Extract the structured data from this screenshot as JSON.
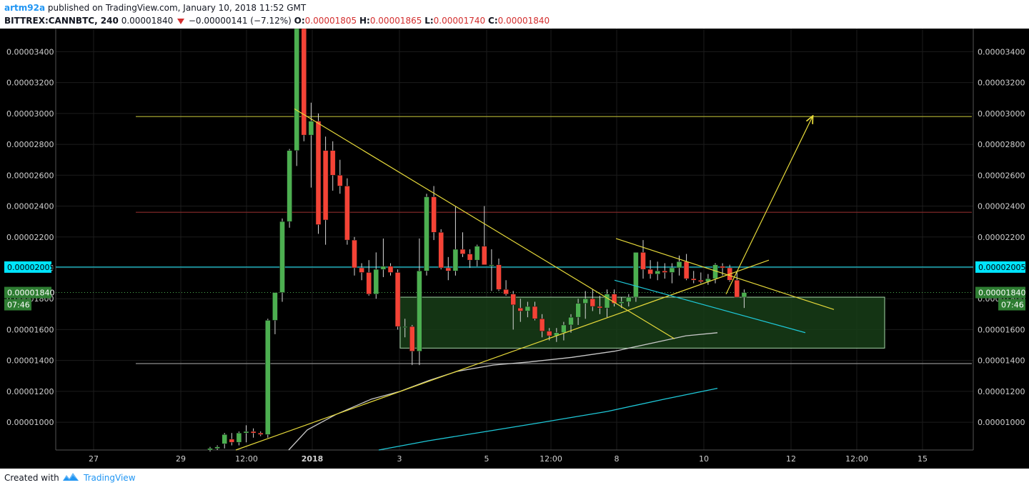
{
  "header": {
    "author": "artm92a",
    "published_text": "published on TradingView.com, January 10, 2018 11:52 GMT",
    "symbol": "BITTREX:CANNBTC, 240",
    "last": "0.00001840",
    "change": "−0.00000141 (−7.12%)",
    "o_label": "O:",
    "o_value": "0.00001805",
    "h_label": "H:",
    "h_value": "0.00001865",
    "l_label": "L:",
    "l_value": "0.00001740",
    "c_label": "C:",
    "c_value": "0.00001840"
  },
  "footer": {
    "created_with": "Created with",
    "brand": "TradingView"
  },
  "colors": {
    "background": "#000000",
    "grid": "#1c1c1c",
    "up": "#4caf50",
    "down": "#f44336",
    "trend": "#e6d93a",
    "cyan": "#1ec8d8",
    "ma_light": "#c8c8c8",
    "hline_yellow": "#b4b436",
    "hline_red": "#8a2a2a",
    "hline_gray": "#8c8c8c",
    "box_fill": "#173d17",
    "box_stroke": "#a5d6a7",
    "price_badge": "#2e7d32",
    "cyan_badge": "#00e5ff"
  },
  "chart_data": {
    "type": "candlestick",
    "y_range": [
      8.2e-06,
      3.55e-05
    ],
    "y_ticks": [
      "0.00001000",
      "0.00001200",
      "0.00001400",
      "0.00001600",
      "0.00001800",
      "0.00002000",
      "0.00002200",
      "0.00002400",
      "0.00002600",
      "0.00002800",
      "0.00003000",
      "0.00003200",
      "0.00003400"
    ],
    "x_labels": [
      "27",
      "29",
      "12:00",
      "2018",
      "3",
      "5",
      "12:00",
      "8",
      "10",
      "12",
      "12:00",
      "15"
    ],
    "last_price_label": "0.00001840",
    "countdown_label": "07:46",
    "cyan_level_label": "0.00002005",
    "cyan_level": 2.005e-05,
    "last_price": 1.84e-05,
    "horizontal_levels": [
      {
        "value": 2.98e-05,
        "color": "hline_yellow"
      },
      {
        "value": 2.36e-05,
        "color": "hline_red"
      },
      {
        "value": 1.38e-05,
        "color": "hline_gray"
      }
    ],
    "candles": [
      [
        8.2e-06,
        8.4e-06,
        8.1e-06,
        8.3e-06
      ],
      [
        8.3e-06,
        8.5e-06,
        8.2e-06,
        8.4e-06
      ],
      [
        8.6e-06,
        9.3e-06,
        8.3e-06,
        9.2e-06
      ],
      [
        8.9e-06,
        9.3e-06,
        8.5e-06,
        8.7e-06
      ],
      [
        8.7e-06,
        9.4e-06,
        8.5e-06,
        9.3e-06
      ],
      [
        9.3e-06,
        9.8e-06,
        8.7e-06,
        9.4e-06
      ],
      [
        9.4e-06,
        9.6e-06,
        9e-06,
        9.3e-06
      ],
      [
        9.3e-06,
        9.4e-06,
        9.1e-06,
        9.2e-06
      ],
      [
        9.2e-06,
        1.67e-05,
        9e-06,
        1.66e-05
      ],
      [
        1.66e-05,
        1.84e-05,
        1.57e-05,
        1.84e-05
      ],
      [
        1.84e-05,
        2.32e-05,
        1.78e-05,
        2.3e-05
      ],
      [
        2.3e-05,
        2.77e-05,
        2.26e-05,
        2.76e-05
      ],
      [
        2.76e-05,
        3.55e-05,
        2.66e-05,
        3.55e-05
      ],
      [
        3.55e-05,
        3.55e-05,
        2.82e-05,
        2.86e-05
      ],
      [
        2.86e-05,
        3.07e-05,
        2.52e-05,
        2.95e-05
      ],
      [
        2.95e-05,
        3e-05,
        2.22e-05,
        2.28e-05
      ],
      [
        2.76e-05,
        2.85e-05,
        2.15e-05,
        2.31e-05
      ],
      [
        2.76e-05,
        2.82e-05,
        2.5e-05,
        2.6e-05
      ],
      [
        2.6e-05,
        2.7e-05,
        2.48e-05,
        2.53e-05
      ],
      [
        2.53e-05,
        2.58e-05,
        2.15e-05,
        2.18e-05
      ],
      [
        2.18e-05,
        2.2e-05,
        1.95e-05,
        2e-05
      ],
      [
        2e-05,
        2.03e-05,
        1.92e-05,
        1.97e-05
      ],
      [
        1.97e-05,
        2.05e-05,
        1.82e-05,
        1.83e-05
      ],
      [
        1.83e-05,
        2.1e-05,
        1.8e-05,
        1.99e-05
      ],
      [
        1.99e-05,
        2.19e-05,
        1.94e-05,
        2.01e-05
      ],
      [
        2.01e-05,
        2.03e-05,
        1.95e-05,
        1.97e-05
      ],
      [
        1.97e-05,
        1.99e-05,
        1.6e-05,
        1.62e-05
      ],
      [
        1.62e-05,
        1.67e-05,
        1.55e-05,
        1.62e-05
      ],
      [
        1.62e-05,
        1.63e-05,
        1.37e-05,
        1.46e-05
      ],
      [
        1.46e-05,
        2.19e-05,
        1.37e-05,
        1.98e-05
      ],
      [
        1.98e-05,
        2.48e-05,
        1.95e-05,
        2.46e-05
      ],
      [
        2.46e-05,
        2.53e-05,
        2.18e-05,
        2.23e-05
      ],
      [
        2.23e-05,
        2.25e-05,
        1.99e-05,
        2e-05
      ],
      [
        2e-05,
        2.07e-05,
        1.92e-05,
        1.98e-05
      ],
      [
        1.98e-05,
        2.4e-05,
        1.95e-05,
        2.12e-05
      ],
      [
        2.12e-05,
        2.23e-05,
        2.07e-05,
        2.09e-05
      ],
      [
        2.09e-05,
        2.12e-05,
        2e-05,
        2.05e-05
      ],
      [
        2.05e-05,
        2.15e-05,
        2.01e-05,
        2.14e-05
      ],
      [
        2.14e-05,
        2.4e-05,
        2.03e-05,
        2.02e-05
      ],
      [
        2.02e-05,
        2.12e-05,
        1.85e-05,
        2.02e-05
      ],
      [
        2.02e-05,
        2.06e-05,
        1.85e-05,
        1.86e-05
      ],
      [
        1.86e-05,
        1.92e-05,
        1.82e-05,
        1.83e-05
      ],
      [
        1.83e-05,
        1.85e-05,
        1.6e-05,
        1.76e-05
      ],
      [
        1.74e-05,
        1.8e-05,
        1.65e-05,
        1.72e-05
      ],
      [
        1.72e-05,
        1.78e-05,
        1.68e-05,
        1.75e-05
      ],
      [
        1.75e-05,
        1.78e-05,
        1.66e-05,
        1.67e-05
      ],
      [
        1.67e-05,
        1.7e-05,
        1.55e-05,
        1.59e-05
      ],
      [
        1.59e-05,
        1.61e-05,
        1.53e-05,
        1.56e-05
      ],
      [
        1.56e-05,
        1.61e-05,
        1.52e-05,
        1.58e-05
      ],
      [
        1.58e-05,
        1.65e-05,
        1.53e-05,
        1.63e-05
      ],
      [
        1.63e-05,
        1.7e-05,
        1.58e-05,
        1.68e-05
      ],
      [
        1.68e-05,
        1.8e-05,
        1.63e-05,
        1.77e-05
      ],
      [
        1.77e-05,
        1.85e-05,
        1.67e-05,
        1.8e-05
      ],
      [
        1.8e-05,
        1.86e-05,
        1.72e-05,
        1.75e-05
      ],
      [
        1.75e-05,
        1.82e-05,
        1.7e-05,
        1.74e-05
      ],
      [
        1.74e-05,
        1.86e-05,
        1.68e-05,
        1.83e-05
      ],
      [
        1.83e-05,
        1.86e-05,
        1.75e-05,
        1.77e-05
      ],
      [
        1.77e-05,
        1.81e-05,
        1.74e-05,
        1.78e-05
      ],
      [
        1.78e-05,
        1.83e-05,
        1.75e-05,
        1.81e-05
      ],
      [
        1.81e-05,
        2.1e-05,
        1.78e-05,
        2.1e-05
      ],
      [
        2.1e-05,
        2.18e-05,
        1.93e-05,
        1.99e-05
      ],
      [
        1.99e-05,
        2.05e-05,
        1.93e-05,
        1.96e-05
      ],
      [
        1.96e-05,
        2.04e-05,
        1.92e-05,
        1.98e-05
      ],
      [
        1.98e-05,
        2.03e-05,
        1.93e-05,
        1.97e-05
      ],
      [
        1.97e-05,
        2.03e-05,
        1.9e-05,
        2e-05
      ],
      [
        2e-05,
        2.08e-05,
        1.95e-05,
        2.04e-05
      ],
      [
        2.04e-05,
        2.09e-05,
        1.92e-05,
        1.93e-05
      ],
      [
        1.93e-05,
        1.98e-05,
        1.9e-05,
        1.92e-05
      ],
      [
        1.92e-05,
        1.97e-05,
        1.9e-05,
        1.91e-05
      ],
      [
        1.91e-05,
        1.96e-05,
        1.89e-05,
        1.93e-05
      ],
      [
        1.93e-05,
        2.03e-05,
        1.9e-05,
        2.02e-05
      ],
      [
        2.01e-05,
        2.03e-05,
        1.95e-05,
        2e-05
      ],
      [
        2e-05,
        2.02e-05,
        1.91e-05,
        1.92e-05
      ],
      [
        1.92e-05,
        1.98e-05,
        1.81e-05,
        1.81e-05
      ],
      [
        1.81e-05,
        1.86e-05,
        1.74e-05,
        1.84e-05
      ]
    ],
    "overlays": {
      "ma_light": [
        [
          404,
          8.2e-06
        ],
        [
          430,
          9.5e-06
        ],
        [
          470,
          1.05e-05
        ],
        [
          520,
          1.15e-05
        ],
        [
          560,
          1.2e-05
        ],
        [
          600,
          1.27e-05
        ],
        [
          640,
          1.33e-05
        ],
        [
          690,
          1.37e-05
        ],
        [
          740,
          1.39e-05
        ],
        [
          800,
          1.42e-05
        ],
        [
          860,
          1.46e-05
        ],
        [
          920,
          1.52e-05
        ],
        [
          960,
          1.56e-05
        ],
        [
          1004,
          1.58e-05
        ]
      ],
      "ma_cyan": [
        [
          530,
          8.2e-06
        ],
        [
          600,
          8.8e-06
        ],
        [
          680,
          9.4e-06
        ],
        [
          760,
          1e-05
        ],
        [
          850,
          1.07e-05
        ],
        [
          930,
          1.15e-05
        ],
        [
          1004,
          1.22e-05
        ]
      ],
      "trendlines": [
        {
          "from": [
            330,
            8.2e-06
          ],
          "to": [
            1076,
            2.05e-05
          ],
          "color": "trend"
        },
        {
          "from": [
            412,
            3.03e-05
          ],
          "to": [
            944,
            1.54e-05
          ],
          "color": "trend"
        },
        {
          "from": [
            862,
            2.19e-05
          ],
          "to": [
            1167,
            1.73e-05
          ],
          "color": "trend"
        },
        {
          "from": [
            860,
            1.92e-05
          ],
          "to": [
            1127,
            1.58e-05
          ],
          "color": "cyan"
        },
        {
          "from": [
            1016,
            1.83e-05
          ],
          "to": [
            1137,
            2.98e-05
          ],
          "color": "trend",
          "arrow": true
        }
      ],
      "box": {
        "x1": 560,
        "x2": 1238,
        "top": 1.81e-05,
        "bottom": 1.48e-05
      }
    }
  }
}
